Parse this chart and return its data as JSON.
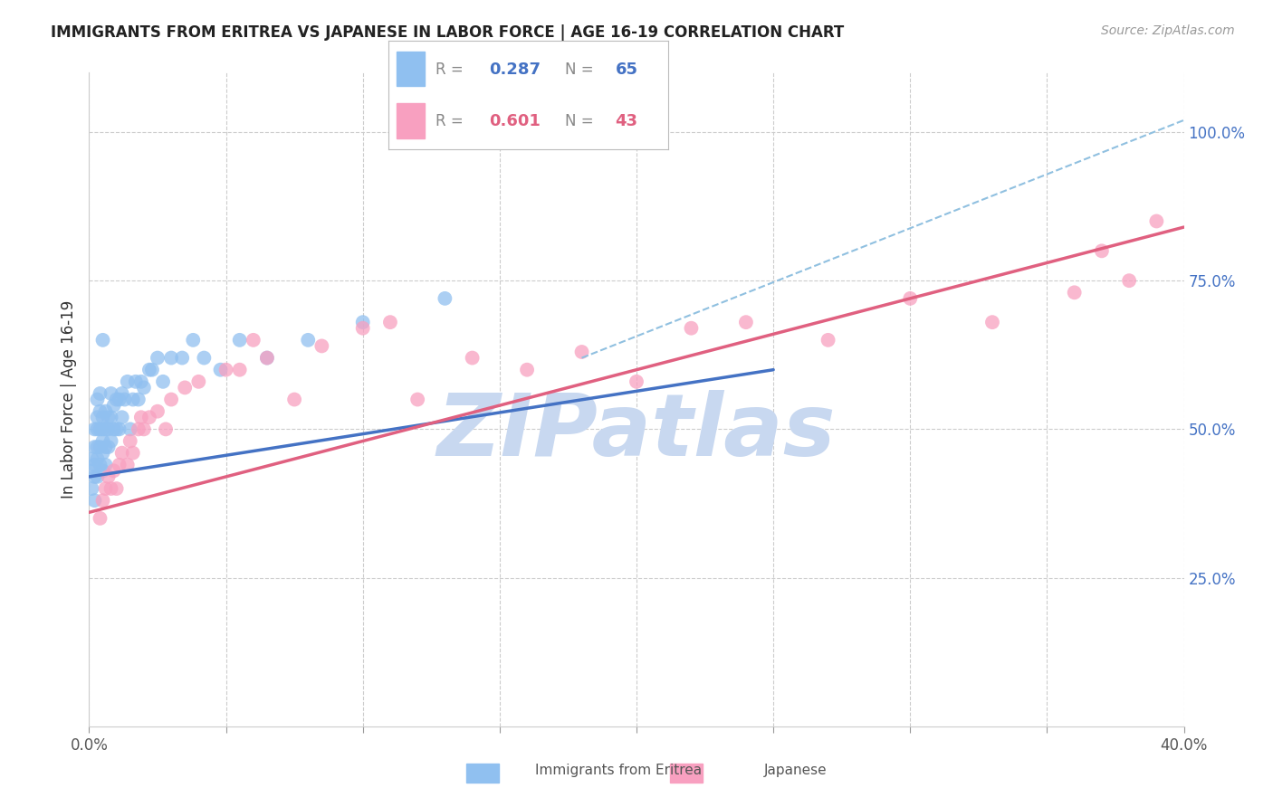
{
  "title": "IMMIGRANTS FROM ERITREA VS JAPANESE IN LABOR FORCE | AGE 16-19 CORRELATION CHART",
  "source": "Source: ZipAtlas.com",
  "ylabel": "In Labor Force | Age 16-19",
  "xlim": [
    0.0,
    0.4
  ],
  "ylim": [
    0.0,
    1.1
  ],
  "xticks": [
    0.0,
    0.05,
    0.1,
    0.15,
    0.2,
    0.25,
    0.3,
    0.35,
    0.4
  ],
  "yticks_right": [
    0.25,
    0.5,
    0.75,
    1.0
  ],
  "yticklabels_right": [
    "25.0%",
    "50.0%",
    "75.0%",
    "100.0%"
  ],
  "grid_color": "#cccccc",
  "background_color": "#ffffff",
  "eritrea_color": "#90C0F0",
  "japanese_color": "#F8A0C0",
  "eritrea_line_color": "#4472C4",
  "japanese_line_color": "#E06080",
  "dashed_line_color": "#90C0E0",
  "eritrea_line_x0": 0.0,
  "eritrea_line_x1": 0.25,
  "eritrea_line_y0": 0.42,
  "eritrea_line_y1": 0.6,
  "japanese_line_x0": 0.0,
  "japanese_line_x1": 0.4,
  "japanese_line_y0": 0.36,
  "japanese_line_y1": 0.84,
  "dashed_line_x0": 0.18,
  "dashed_line_x1": 0.4,
  "dashed_line_y0": 0.62,
  "dashed_line_y1": 1.02,
  "watermark": "ZIPatlas",
  "watermark_color": "#C8D8F0",
  "watermark_fontsize": 70,
  "legend_eritrea_R": "0.287",
  "legend_eritrea_N": "65",
  "legend_japanese_R": "0.601",
  "legend_japanese_N": "43",
  "eritrea_x": [
    0.001,
    0.001,
    0.001,
    0.002,
    0.002,
    0.002,
    0.002,
    0.002,
    0.003,
    0.003,
    0.003,
    0.003,
    0.003,
    0.003,
    0.004,
    0.004,
    0.004,
    0.004,
    0.004,
    0.005,
    0.005,
    0.005,
    0.005,
    0.005,
    0.005,
    0.006,
    0.006,
    0.006,
    0.006,
    0.007,
    0.007,
    0.007,
    0.008,
    0.008,
    0.008,
    0.009,
    0.009,
    0.01,
    0.01,
    0.011,
    0.011,
    0.012,
    0.012,
    0.013,
    0.014,
    0.015,
    0.016,
    0.017,
    0.018,
    0.019,
    0.02,
    0.022,
    0.023,
    0.025,
    0.027,
    0.03,
    0.034,
    0.038,
    0.042,
    0.048,
    0.055,
    0.065,
    0.08,
    0.1,
    0.13
  ],
  "eritrea_y": [
    0.4,
    0.43,
    0.45,
    0.38,
    0.42,
    0.44,
    0.47,
    0.5,
    0.42,
    0.45,
    0.47,
    0.5,
    0.52,
    0.55,
    0.44,
    0.47,
    0.5,
    0.53,
    0.56,
    0.43,
    0.46,
    0.48,
    0.5,
    0.52,
    0.65,
    0.44,
    0.47,
    0.5,
    0.53,
    0.47,
    0.5,
    0.52,
    0.48,
    0.52,
    0.56,
    0.5,
    0.54,
    0.5,
    0.55,
    0.5,
    0.55,
    0.52,
    0.56,
    0.55,
    0.58,
    0.5,
    0.55,
    0.58,
    0.55,
    0.58,
    0.57,
    0.6,
    0.6,
    0.62,
    0.58,
    0.62,
    0.62,
    0.65,
    0.62,
    0.6,
    0.65,
    0.62,
    0.65,
    0.68,
    0.72
  ],
  "japanese_x": [
    0.004,
    0.005,
    0.006,
    0.007,
    0.008,
    0.009,
    0.01,
    0.011,
    0.012,
    0.014,
    0.015,
    0.016,
    0.018,
    0.019,
    0.02,
    0.022,
    0.025,
    0.028,
    0.03,
    0.035,
    0.04,
    0.05,
    0.055,
    0.06,
    0.065,
    0.075,
    0.085,
    0.1,
    0.11,
    0.12,
    0.14,
    0.16,
    0.18,
    0.2,
    0.22,
    0.24,
    0.27,
    0.3,
    0.33,
    0.36,
    0.37,
    0.38,
    0.39
  ],
  "japanese_y": [
    0.35,
    0.38,
    0.4,
    0.42,
    0.4,
    0.43,
    0.4,
    0.44,
    0.46,
    0.44,
    0.48,
    0.46,
    0.5,
    0.52,
    0.5,
    0.52,
    0.53,
    0.5,
    0.55,
    0.57,
    0.58,
    0.6,
    0.6,
    0.65,
    0.62,
    0.55,
    0.64,
    0.67,
    0.68,
    0.55,
    0.62,
    0.6,
    0.63,
    0.58,
    0.67,
    0.68,
    0.65,
    0.72,
    0.68,
    0.73,
    0.8,
    0.75,
    0.85
  ]
}
